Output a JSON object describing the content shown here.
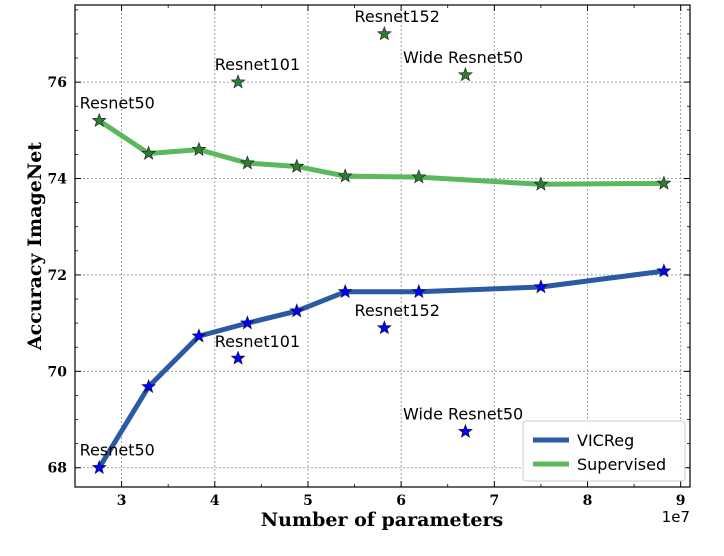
{
  "chart_data": {
    "type": "line",
    "title": "",
    "xlabel": "Number of parameters",
    "ylabel": "Accuracy ImageNet",
    "x_offset_label": "1e7",
    "xlim": [
      2.5,
      9.1
    ],
    "ylim": [
      67.6,
      77.6
    ],
    "xticks": [
      3,
      4,
      5,
      6,
      7,
      8,
      9
    ],
    "yticks": [
      68,
      70,
      72,
      74,
      76
    ],
    "grid": true,
    "legend_position": "lower-right",
    "series": [
      {
        "name": "VICReg",
        "color": "#2b5aa5",
        "x": [
          2.76,
          3.29,
          3.83,
          4.35,
          4.88,
          5.4,
          6.19,
          7.5,
          8.82
        ],
        "y": [
          68.0,
          69.68,
          70.73,
          71.0,
          71.25,
          71.65,
          71.65,
          71.75,
          72.08
        ]
      },
      {
        "name": "Supervised",
        "color": "#5cb85c",
        "x": [
          2.76,
          3.29,
          3.83,
          4.35,
          4.88,
          5.4,
          6.19,
          7.5,
          8.82
        ],
        "y": [
          75.2,
          74.52,
          74.6,
          74.32,
          74.25,
          74.05,
          74.03,
          73.88,
          73.9
        ]
      }
    ],
    "standalone_points": [
      {
        "group": "VICReg",
        "color": "#0000ff",
        "x": 4.25,
        "y": 70.27
      },
      {
        "group": "VICReg",
        "color": "#0000ff",
        "x": 5.82,
        "y": 70.9
      },
      {
        "group": "VICReg",
        "color": "#0000ff",
        "x": 6.69,
        "y": 68.75
      },
      {
        "group": "Supervised",
        "color": "#2e7d32",
        "x": 4.25,
        "y": 76.0
      },
      {
        "group": "Supervised",
        "color": "#2e7d32",
        "x": 5.82,
        "y": 77.0
      },
      {
        "group": "Supervised",
        "color": "#2e7d32",
        "x": 6.69,
        "y": 76.15
      }
    ],
    "annotations": [
      {
        "text": "Resnet50",
        "x": 2.55,
        "y": 75.45
      },
      {
        "text": "Resnet101",
        "x": 4.0,
        "y": 76.25
      },
      {
        "text": "Resnet152",
        "x": 5.5,
        "y": 77.25
      },
      {
        "text": "Wide Resnet50",
        "x": 6.02,
        "y": 76.4
      },
      {
        "text": "Resnet50",
        "x": 2.55,
        "y": 68.25
      },
      {
        "text": "Resnet101",
        "x": 4.0,
        "y": 70.5
      },
      {
        "text": "Resnet152",
        "x": 5.5,
        "y": 71.15
      },
      {
        "text": "Wide Resnet50",
        "x": 6.02,
        "y": 69.0
      }
    ]
  }
}
